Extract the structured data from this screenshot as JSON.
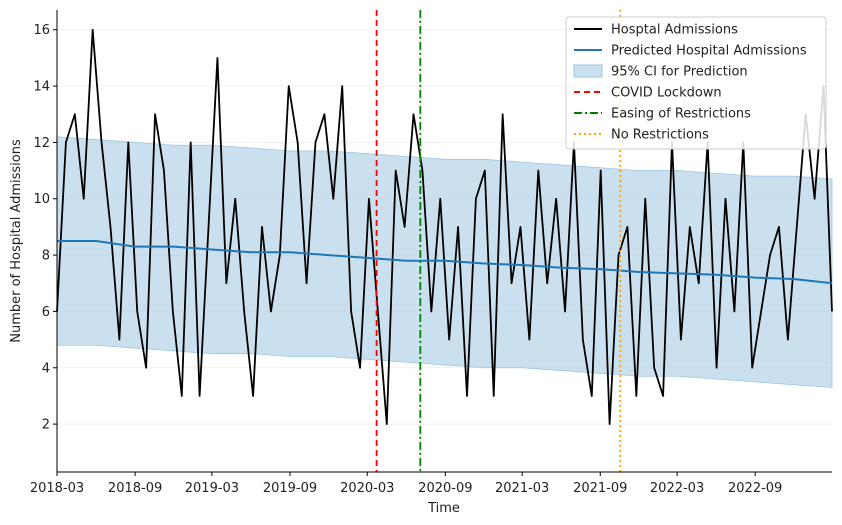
{
  "chart_data": {
    "type": "line",
    "title": "",
    "xlabel": "Time",
    "ylabel": "Number of Hospital Admissions",
    "x_range": [
      "2018-03-01",
      "2023-03-01"
    ],
    "ylim": [
      0.3,
      16.7
    ],
    "x_ticks": [
      {
        "date": "2018-03-01",
        "label": "2018-03"
      },
      {
        "date": "2018-09-01",
        "label": "2018-09"
      },
      {
        "date": "2019-03-01",
        "label": "2019-03"
      },
      {
        "date": "2019-09-01",
        "label": "2019-09"
      },
      {
        "date": "2020-03-01",
        "label": "2020-03"
      },
      {
        "date": "2020-09-01",
        "label": "2020-09"
      },
      {
        "date": "2021-03-01",
        "label": "2021-03"
      },
      {
        "date": "2021-09-01",
        "label": "2021-09"
      },
      {
        "date": "2022-03-01",
        "label": "2022-03"
      },
      {
        "date": "2022-09-01",
        "label": "2022-09"
      }
    ],
    "y_ticks": [
      2,
      4,
      6,
      8,
      10,
      12,
      14,
      16
    ],
    "grid": "horizontal, light",
    "legend_position": "top-right",
    "series": [
      {
        "name": "Hosptal Admissions",
        "color": "#000000",
        "x": [
          "2018-03-01",
          "2018-03-22",
          "2018-04-12",
          "2018-05-03",
          "2018-05-24",
          "2018-06-14",
          "2018-07-05",
          "2018-07-26",
          "2018-08-16",
          "2018-09-06",
          "2018-09-27",
          "2018-10-18",
          "2018-11-08",
          "2018-11-29",
          "2018-12-20",
          "2019-01-10",
          "2019-01-31",
          "2019-02-21",
          "2019-03-14",
          "2019-04-04",
          "2019-04-25",
          "2019-05-16",
          "2019-06-06",
          "2019-06-27",
          "2019-07-18",
          "2019-08-08",
          "2019-08-29",
          "2019-09-19",
          "2019-10-10",
          "2019-10-31",
          "2019-11-21",
          "2019-12-12",
          "2020-01-02",
          "2020-01-23",
          "2020-02-13",
          "2020-03-05",
          "2020-03-26",
          "2020-04-16",
          "2020-05-07",
          "2020-05-28",
          "2020-06-18",
          "2020-07-09",
          "2020-07-30",
          "2020-08-20",
          "2020-09-10",
          "2020-10-01",
          "2020-10-22",
          "2020-11-12",
          "2020-12-03",
          "2020-12-24",
          "2021-01-14",
          "2021-02-04",
          "2021-02-25",
          "2021-03-18",
          "2021-04-08",
          "2021-04-29",
          "2021-05-20",
          "2021-06-10",
          "2021-07-01",
          "2021-07-22",
          "2021-08-12",
          "2021-09-02",
          "2021-09-23",
          "2021-10-14",
          "2021-11-04",
          "2021-11-25",
          "2021-12-16",
          "2022-01-06",
          "2022-01-27",
          "2022-02-17",
          "2022-03-10",
          "2022-03-31",
          "2022-04-21",
          "2022-05-12",
          "2022-06-02",
          "2022-06-23",
          "2022-07-14",
          "2022-08-04",
          "2022-08-25",
          "2022-09-15",
          "2022-10-06",
          "2022-10-27",
          "2022-11-17",
          "2022-12-08",
          "2022-12-29",
          "2023-01-19",
          "2023-02-09",
          "2023-03-01"
        ],
        "values": [
          6,
          12,
          13,
          10,
          16,
          12,
          9,
          5,
          12,
          6,
          4,
          13,
          11,
          6,
          3,
          12,
          3,
          9,
          15,
          7,
          10,
          6,
          3,
          9,
          6,
          8,
          14,
          12,
          7,
          12,
          13,
          10,
          14,
          6,
          4,
          10,
          6,
          2,
          11,
          9,
          13,
          11,
          6,
          10,
          5,
          9,
          3,
          10,
          11,
          3,
          13,
          7,
          9,
          5,
          11,
          7,
          10,
          6,
          12,
          5,
          3,
          11,
          2,
          8,
          9,
          3,
          10,
          4,
          3,
          12,
          5,
          9,
          7,
          12,
          4,
          10,
          6,
          12,
          4,
          6,
          8,
          9,
          5,
          9,
          13,
          10,
          14,
          6
        ]
      },
      {
        "name": "Predicted Hospital Admissions",
        "color": "#1f77b4",
        "x": [
          "2018-03-01",
          "2018-06-01",
          "2018-09-01",
          "2018-12-01",
          "2019-03-01",
          "2019-06-01",
          "2019-09-01",
          "2019-12-01",
          "2020-03-01",
          "2020-06-01",
          "2020-09-01",
          "2020-12-01",
          "2021-03-01",
          "2021-06-01",
          "2021-09-01",
          "2021-12-01",
          "2022-03-01",
          "2022-06-01",
          "2022-09-01",
          "2022-12-01",
          "2023-03-01"
        ],
        "values": [
          8.5,
          8.5,
          8.3,
          8.3,
          8.2,
          8.1,
          8.1,
          8.0,
          7.9,
          7.8,
          7.8,
          7.7,
          7.65,
          7.55,
          7.5,
          7.4,
          7.35,
          7.3,
          7.2,
          7.15,
          7.0
        ]
      }
    ],
    "confidence_band": {
      "name": "95% CI for Prediction",
      "color": "#a9cce3",
      "x": [
        "2018-03-01",
        "2018-06-01",
        "2018-09-01",
        "2018-12-01",
        "2019-03-01",
        "2019-06-01",
        "2019-09-01",
        "2019-12-01",
        "2020-03-01",
        "2020-06-01",
        "2020-09-01",
        "2020-12-01",
        "2021-03-01",
        "2021-06-01",
        "2021-09-01",
        "2021-12-01",
        "2022-03-01",
        "2022-06-01",
        "2022-09-01",
        "2022-12-01",
        "2023-03-01"
      ],
      "lower": [
        4.8,
        4.8,
        4.7,
        4.6,
        4.5,
        4.5,
        4.4,
        4.4,
        4.3,
        4.2,
        4.1,
        4.0,
        4.0,
        3.9,
        3.8,
        3.7,
        3.7,
        3.6,
        3.5,
        3.4,
        3.3
      ],
      "upper": [
        12.2,
        12.1,
        12.0,
        11.9,
        11.9,
        11.8,
        11.7,
        11.7,
        11.6,
        11.5,
        11.4,
        11.4,
        11.3,
        11.2,
        11.1,
        11.0,
        11.0,
        10.9,
        10.8,
        10.8,
        10.7
      ]
    },
    "vertical_lines": [
      {
        "name": "COVID Lockdown",
        "date": "2020-03-23",
        "color": "#ff0000",
        "style": "dashed"
      },
      {
        "name": "Easing of Restrictions",
        "date": "2020-07-04",
        "color": "#008000",
        "style": "dashdot"
      },
      {
        "name": "No Restrictions",
        "date": "2021-10-18",
        "color": "#ffa500",
        "style": "dotted"
      }
    ]
  }
}
